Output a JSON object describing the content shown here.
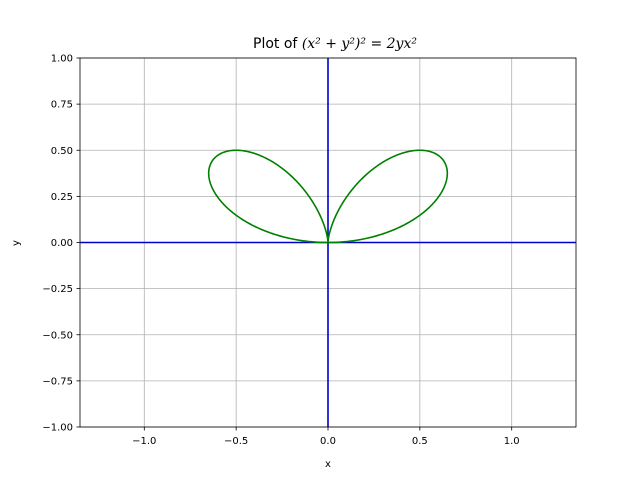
{
  "chart_data": {
    "type": "line",
    "title": {
      "prefix": "Plot of ",
      "equation": "(x² + y²)² = 2yx²"
    },
    "xlabel": "x",
    "ylabel": "y",
    "xlim": [
      -1.35,
      1.35
    ],
    "ylim": [
      -1.0,
      1.0
    ],
    "x_ticks": [
      -1.0,
      -0.5,
      0.0,
      0.5,
      1.0
    ],
    "x_tick_labels": [
      "−1.0",
      "−0.5",
      "0.0",
      "0.5",
      "1.0"
    ],
    "y_ticks": [
      -1.0,
      -0.75,
      -0.5,
      -0.25,
      0.0,
      0.25,
      0.5,
      0.75,
      1.0
    ],
    "y_tick_labels": [
      "−1.00",
      "−0.75",
      "−0.50",
      "−0.25",
      "0.00",
      "0.25",
      "0.50",
      "0.75",
      "1.00"
    ],
    "grid": true,
    "series": [
      {
        "curve": "(x^2 + y^2)^2 = 2*y*x^2",
        "parametric_polar": "r = 2*sin(t)*cos(t)^2, t in [0, pi]",
        "color": "#008000"
      }
    ],
    "reference_lines": [
      {
        "orientation": "horizontal",
        "y": 0,
        "color": "#0000cc"
      },
      {
        "orientation": "vertical",
        "x": 0,
        "color": "#0000cc"
      }
    ]
  }
}
